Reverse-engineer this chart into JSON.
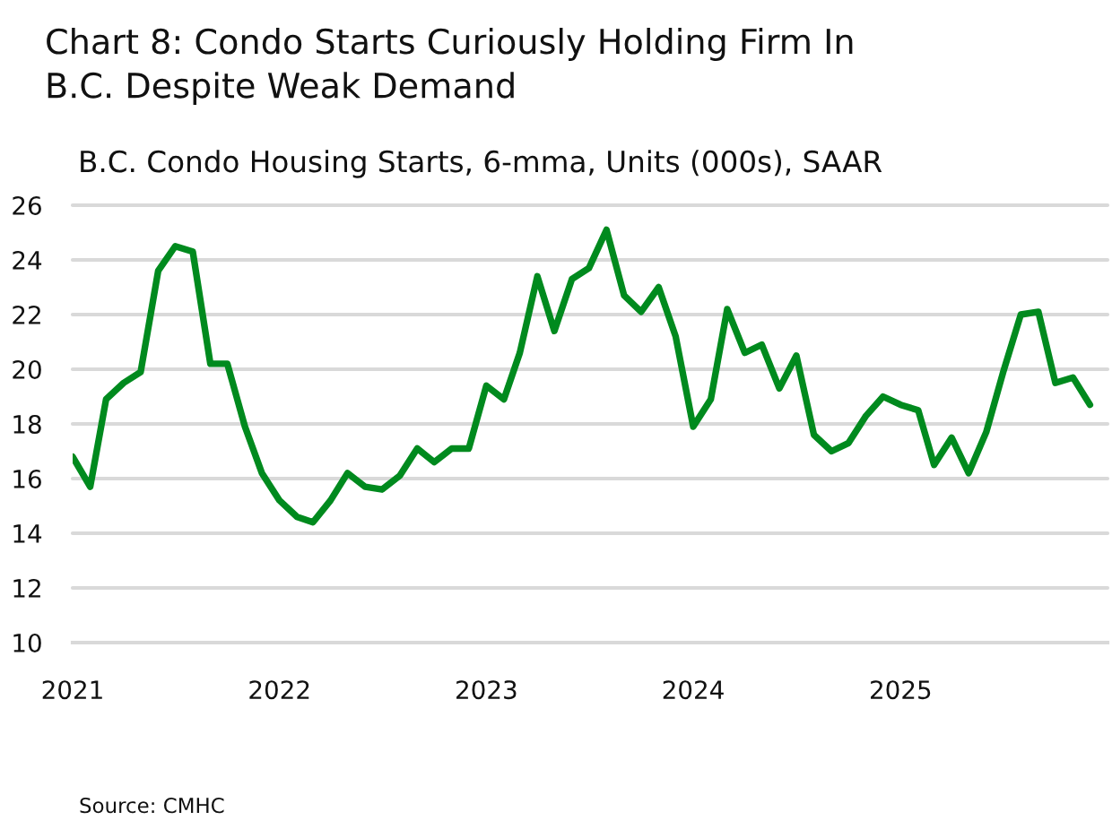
{
  "chart_data": {
    "type": "line",
    "title": "Chart 8: Condo Starts Curiously Holding Firm In\nB.C. Despite Weak Demand",
    "subtitle": "B.C. Condo Housing Starts, 6-mma, Units (000s), SAAR",
    "x": [
      "2021-01",
      "2021-02",
      "2021-03",
      "2021-04",
      "2021-05",
      "2021-06",
      "2021-07",
      "2021-08",
      "2021-09",
      "2021-10",
      "2021-11",
      "2021-12",
      "2022-01",
      "2022-02",
      "2022-03",
      "2022-04",
      "2022-05",
      "2022-06",
      "2022-07",
      "2022-08",
      "2022-09",
      "2022-10",
      "2022-11",
      "2022-12",
      "2023-01",
      "2023-02",
      "2023-03",
      "2023-04",
      "2023-05",
      "2023-06",
      "2023-07",
      "2023-08",
      "2023-09",
      "2023-10",
      "2023-11",
      "2023-12",
      "2024-01",
      "2024-02",
      "2024-03",
      "2024-04",
      "2024-05",
      "2024-06",
      "2024-07",
      "2024-08",
      "2024-09",
      "2024-10",
      "2024-11",
      "2024-12",
      "2025-01",
      "2025-02",
      "2025-03",
      "2025-04",
      "2025-05",
      "2025-06",
      "2025-07",
      "2025-08",
      "2025-09",
      "2025-10",
      "2025-11",
      "2025-12"
    ],
    "series": [
      {
        "color": "#008a1e",
        "values": [
          16.8,
          15.7,
          18.9,
          19.5,
          19.9,
          23.6,
          24.5,
          24.3,
          20.2,
          20.2,
          17.9,
          16.2,
          15.2,
          14.6,
          14.4,
          15.2,
          16.2,
          15.7,
          15.6,
          16.1,
          17.1,
          16.6,
          17.1,
          17.1,
          19.4,
          18.9,
          20.6,
          23.4,
          21.4,
          23.3,
          23.7,
          25.1,
          22.7,
          22.1,
          23.0,
          21.2,
          17.9,
          18.9,
          22.2,
          20.6,
          20.9,
          19.3,
          20.5,
          17.6,
          17.0,
          17.3,
          18.3,
          19.0,
          18.7,
          18.5,
          16.5,
          17.5,
          16.2,
          17.7,
          19.9,
          22.0,
          22.1,
          19.5,
          19.7,
          18.7
        ]
      }
    ],
    "xlim": [
      "2021-01",
      "2026-01"
    ],
    "xticks": [
      {
        "value": "2021-01",
        "label": "2021"
      },
      {
        "value": "2022-01",
        "label": "2022"
      },
      {
        "value": "2023-01",
        "label": "2023"
      },
      {
        "value": "2024-01",
        "label": "2024"
      },
      {
        "value": "2025-01",
        "label": "2025"
      }
    ],
    "ylim": [
      10,
      26
    ],
    "yticks": [
      10,
      12,
      14,
      16,
      18,
      20,
      22,
      24,
      26
    ],
    "grid": "y",
    "annotations": [
      "Source: CMHC"
    ]
  }
}
